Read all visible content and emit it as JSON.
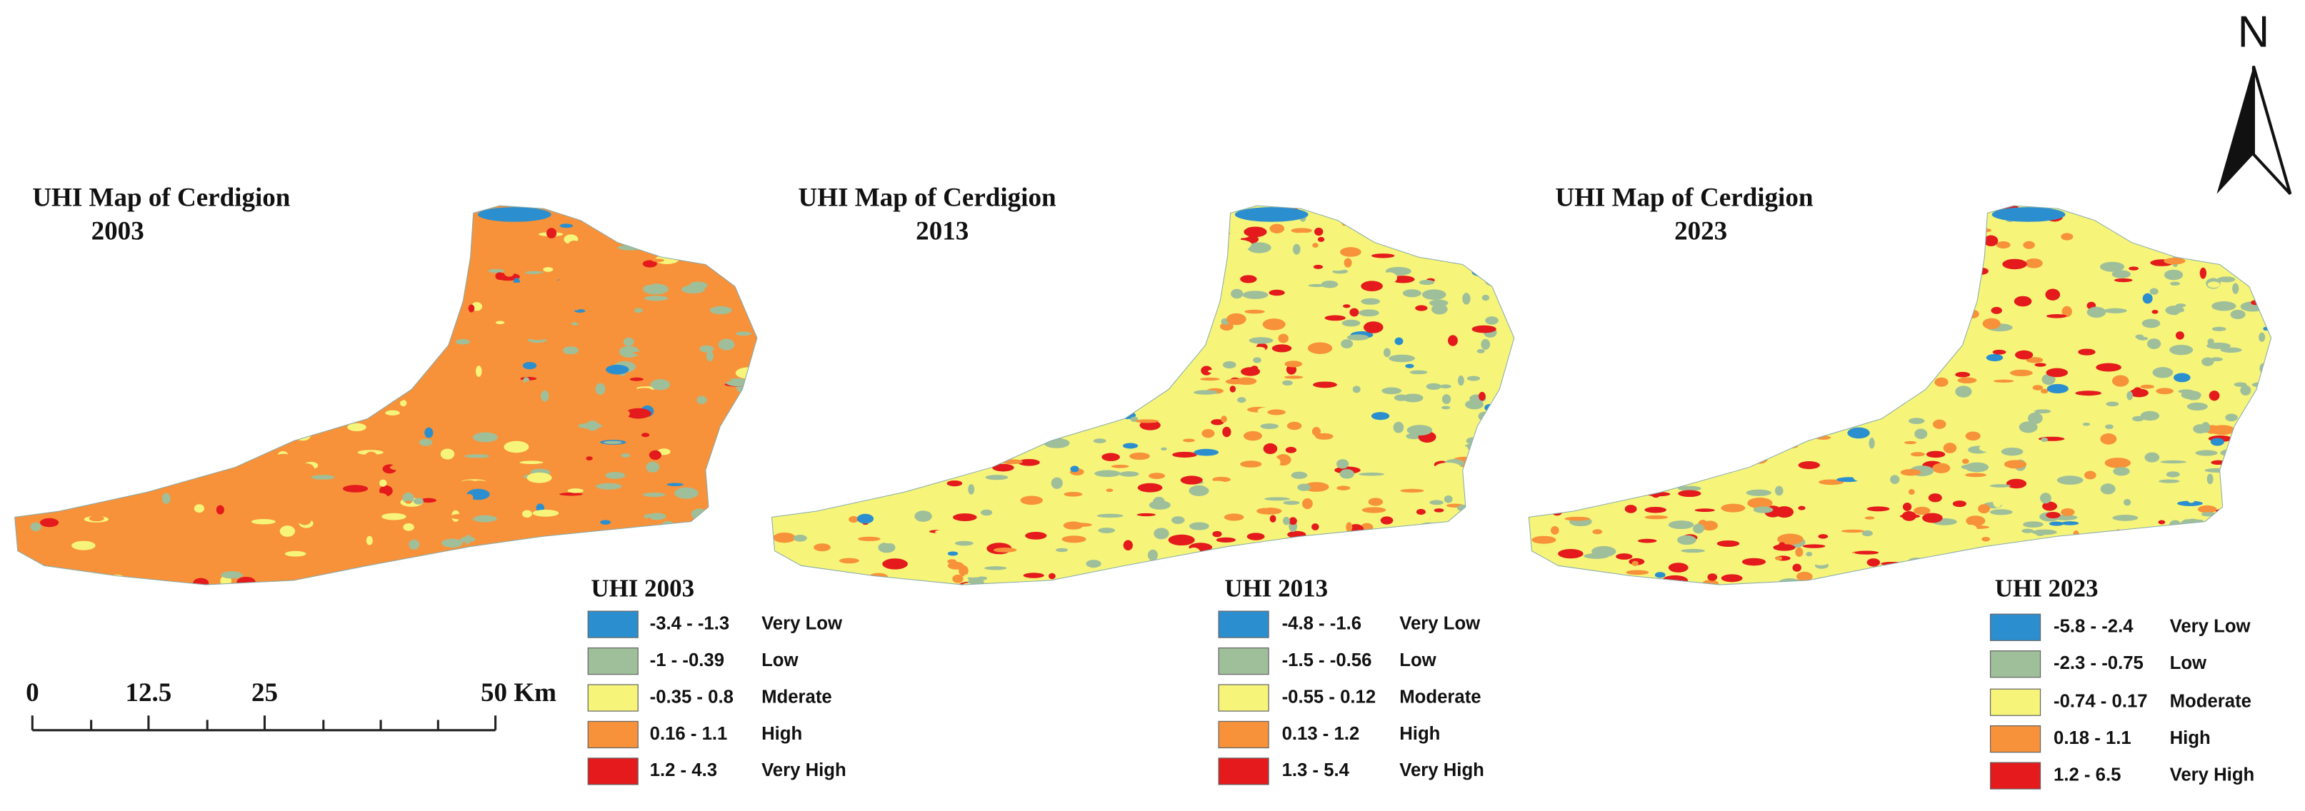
{
  "panels": [
    {
      "title": [
        "UHI Map of Cerdigion",
        "2003"
      ],
      "legend_title": "UHI 2003",
      "legend": [
        {
          "range": "-3.4 - -1.3",
          "label": "Very Low"
        },
        {
          "range": "-1 - -0.39",
          "label": "Low"
        },
        {
          "range": "-0.35 - 0.8",
          "label": "Mderate"
        },
        {
          "range": "0.16 - 1.1",
          "label": "High"
        },
        {
          "range": "1.2 - 4.3",
          "label": "Very High"
        }
      ]
    },
    {
      "title": [
        "UHI Map of Cerdigion",
        "2013"
      ],
      "legend_title": "UHI 2013",
      "legend": [
        {
          "range": "-4.8 - -1.6",
          "label": "Very Low"
        },
        {
          "range": "-1.5 - -0.56",
          "label": "Low"
        },
        {
          "range": "-0.55 - 0.12",
          "label": "Moderate"
        },
        {
          "range": "0.13 - 1.2",
          "label": "High"
        },
        {
          "range": "1.3 - 5.4",
          "label": "Very High"
        }
      ]
    },
    {
      "title": [
        "UHI Map of Cerdigion",
        "2023"
      ],
      "legend_title": "UHI 2023",
      "legend": [
        {
          "range": "-5.8 - -2.4",
          "label": "Very Low"
        },
        {
          "range": "-2.3 - -0.75",
          "label": "Low"
        },
        {
          "range": "-0.74 - 0.17",
          "label": "Moderate"
        },
        {
          "range": "0.18 - 1.1",
          "label": "High"
        },
        {
          "range": "1.2 - 6.5",
          "label": "Very High"
        }
      ]
    }
  ],
  "legend_colors": [
    "#2b8fcf",
    "#9fbf9a",
    "#f6f57a",
    "#f7923a",
    "#e41a1c"
  ],
  "scale_bar": [
    "0",
    "12.5",
    "25",
    "50 Km"
  ],
  "north": "N"
}
